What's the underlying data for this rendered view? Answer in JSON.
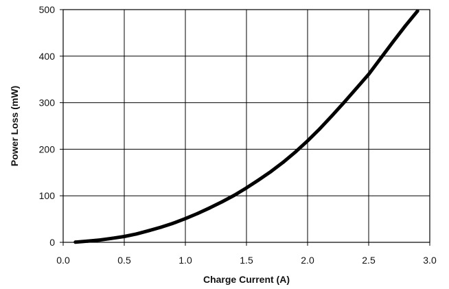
{
  "chart_data": {
    "type": "line",
    "title": "",
    "xlabel": "Charge Current (A)",
    "ylabel": "Power Loss (mW)",
    "xlim": [
      0.0,
      3.0
    ],
    "ylim": [
      0,
      500
    ],
    "x_ticks": [
      "0.0",
      "0.5",
      "1.0",
      "1.5",
      "2.0",
      "2.5",
      "3.0"
    ],
    "y_ticks": [
      "0",
      "100",
      "200",
      "300",
      "400",
      "500"
    ],
    "grid": true,
    "legend": "none",
    "series": [
      {
        "color": "#000000",
        "x": [
          0.1,
          0.2,
          0.3,
          0.4,
          0.5,
          0.6,
          0.7,
          0.8,
          0.9,
          1.0,
          1.1,
          1.2,
          1.3,
          1.4,
          1.5,
          1.6,
          1.7,
          1.8,
          1.9,
          2.0,
          2.1,
          2.2,
          2.3,
          2.4,
          2.5,
          2.6,
          2.7,
          2.8,
          2.9
        ],
        "y": [
          0.5,
          2.5,
          5,
          8.5,
          12.5,
          18,
          25,
          32.5,
          41,
          51,
          62,
          74,
          87,
          101,
          117,
          134,
          152,
          172,
          194,
          218,
          244,
          272,
          301,
          331,
          361,
          396,
          431,
          465,
          497
        ]
      }
    ]
  }
}
